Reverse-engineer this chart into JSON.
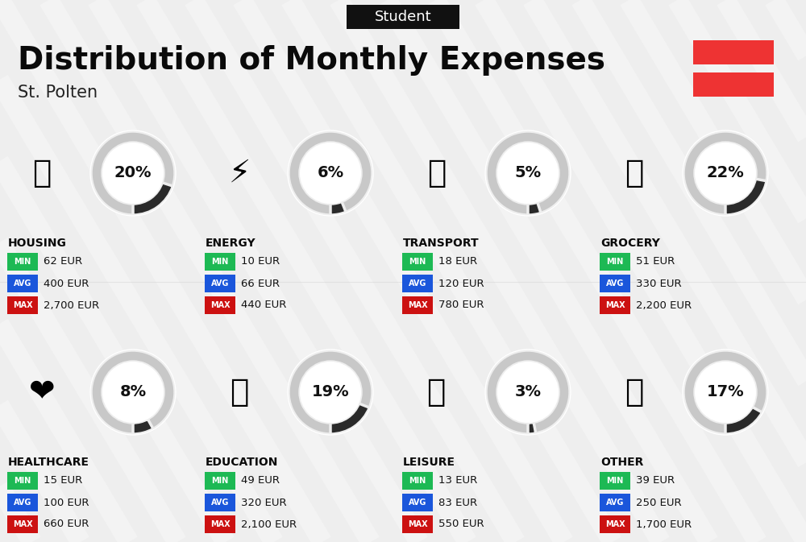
{
  "title": "Distribution of Monthly Expenses",
  "subtitle": "St. Polten",
  "header_label": "Student",
  "bg_color": "#eeeeee",
  "header_bg": "#111111",
  "header_text_color": "#ffffff",
  "title_color": "#0a0a0a",
  "subtitle_color": "#222222",
  "flag_color": "#EE3333",
  "categories": [
    {
      "name": "HOUSING",
      "pct": 20,
      "min": "62 EUR",
      "avg": "400 EUR",
      "max": "2,700 EUR",
      "col": 0,
      "row": 0
    },
    {
      "name": "ENERGY",
      "pct": 6,
      "min": "10 EUR",
      "avg": "66 EUR",
      "max": "440 EUR",
      "col": 1,
      "row": 0
    },
    {
      "name": "TRANSPORT",
      "pct": 5,
      "min": "18 EUR",
      "avg": "120 EUR",
      "max": "780 EUR",
      "col": 2,
      "row": 0
    },
    {
      "name": "GROCERY",
      "pct": 22,
      "min": "51 EUR",
      "avg": "330 EUR",
      "max": "2,200 EUR",
      "col": 3,
      "row": 0
    },
    {
      "name": "HEALTHCARE",
      "pct": 8,
      "min": "15 EUR",
      "avg": "100 EUR",
      "max": "660 EUR",
      "col": 0,
      "row": 1
    },
    {
      "name": "EDUCATION",
      "pct": 19,
      "min": "49 EUR",
      "avg": "320 EUR",
      "max": "2,100 EUR",
      "col": 1,
      "row": 1
    },
    {
      "name": "LEISURE",
      "pct": 3,
      "min": "13 EUR",
      "avg": "83 EUR",
      "max": "550 EUR",
      "col": 2,
      "row": 1
    },
    {
      "name": "OTHER",
      "pct": 17,
      "min": "39 EUR",
      "avg": "250 EUR",
      "max": "1,700 EUR",
      "col": 3,
      "row": 1
    }
  ],
  "min_color": "#1db954",
  "avg_color": "#1a56db",
  "max_color": "#cc1111",
  "donut_dark_color": "#2a2a2a",
  "donut_light_color": "#c8c8c8",
  "donut_gap_color": "#eeeeee",
  "stripe_color": "#ffffff",
  "stripe_alpha": 0.3,
  "stripe_linewidth": 18
}
